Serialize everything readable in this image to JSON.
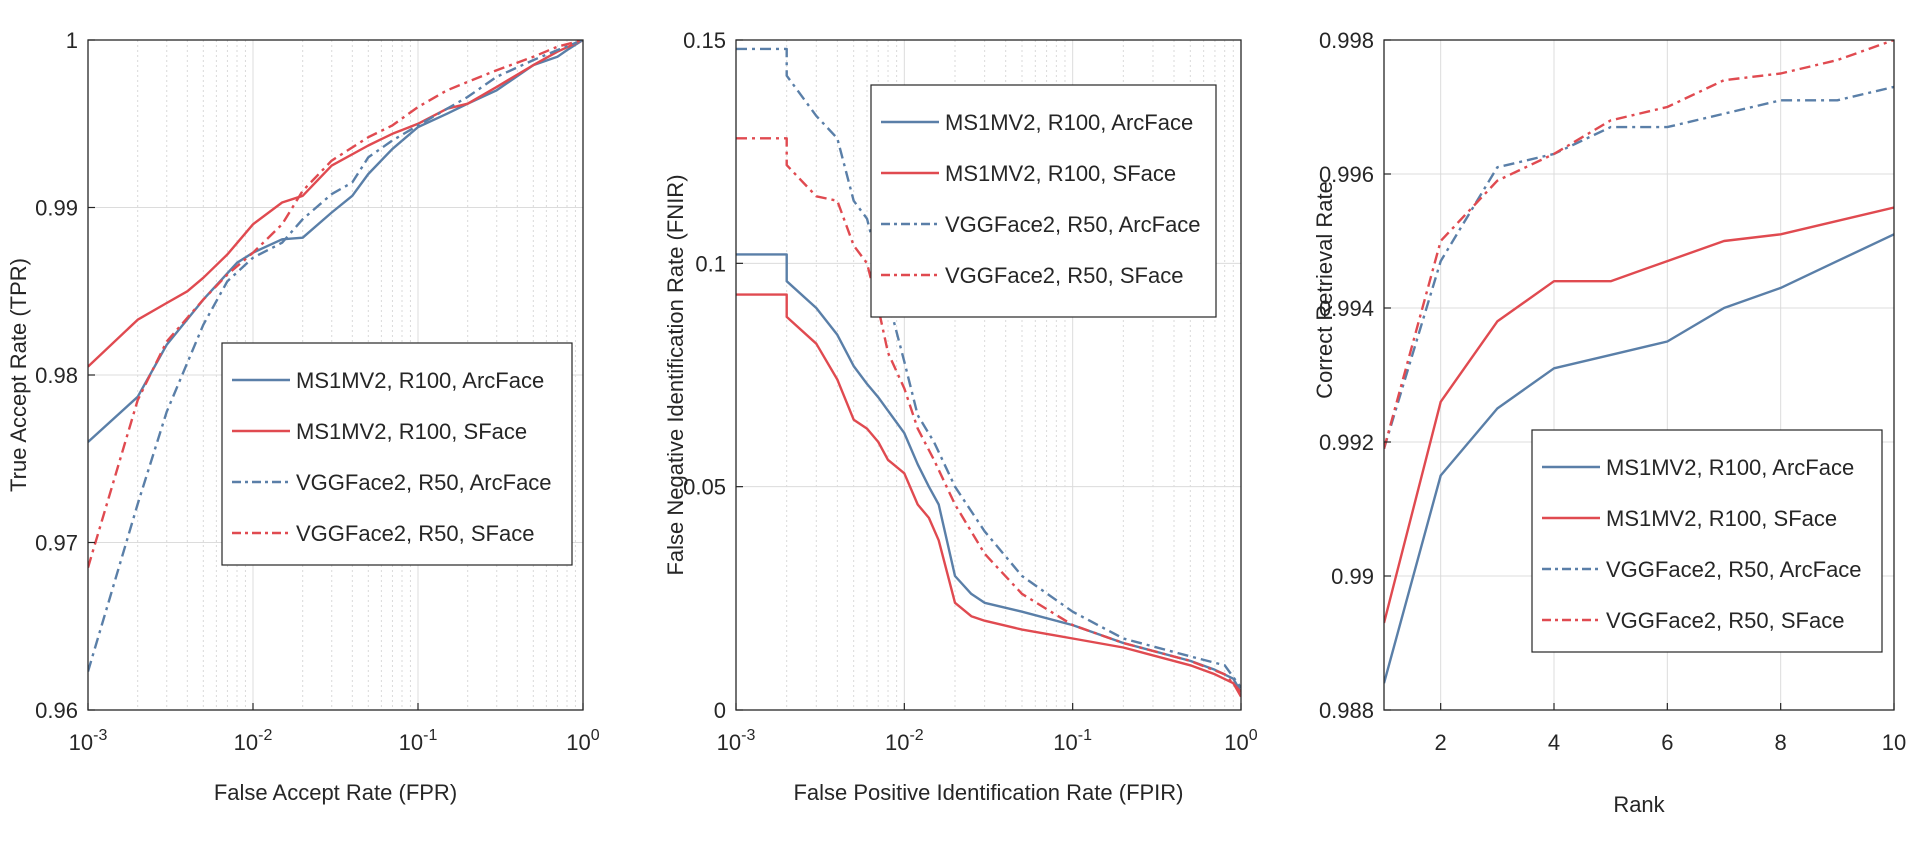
{
  "chart_data": [
    {
      "id": "roc",
      "type": "line",
      "xscale": "log",
      "xlabel": "False Accept Rate (FPR)",
      "ylabel": "True Accept Rate (TPR)",
      "xlim": [
        0.001,
        1
      ],
      "ylim": [
        0.96,
        1
      ],
      "xticks": [
        0.001,
        0.01,
        0.1,
        1
      ],
      "xtick_labels": [
        {
          "base": "10",
          "exp": "-3"
        },
        {
          "base": "10",
          "exp": "-2"
        },
        {
          "base": "10",
          "exp": "-1"
        },
        {
          "base": "10",
          "exp": "0"
        }
      ],
      "yticks": [
        0.96,
        0.97,
        0.98,
        0.99,
        1
      ],
      "ytick_labels": [
        "0.96",
        "0.97",
        "0.98",
        "0.99",
        "1"
      ],
      "grid": true,
      "legend_position": "center-right",
      "series": [
        {
          "name": "MS1MV2, R100, ArcFace",
          "color": "#5a7fa8",
          "dash": "solid",
          "x": [
            0.001,
            0.002,
            0.003,
            0.005,
            0.008,
            0.01,
            0.015,
            0.02,
            0.03,
            0.04,
            0.05,
            0.07,
            0.1,
            0.15,
            0.2,
            0.3,
            0.5,
            0.7,
            0.8,
            1.0
          ],
          "y": [
            0.976,
            0.9787,
            0.9818,
            0.9845,
            0.9867,
            0.9873,
            0.9881,
            0.9882,
            0.9897,
            0.9907,
            0.992,
            0.9935,
            0.9948,
            0.9956,
            0.9962,
            0.997,
            0.9985,
            0.999,
            0.9994,
            1.0
          ]
        },
        {
          "name": "MS1MV2, R100, SFace",
          "color": "#e04a50",
          "dash": "solid",
          "x": [
            0.001,
            0.002,
            0.003,
            0.004,
            0.005,
            0.007,
            0.01,
            0.015,
            0.02,
            0.03,
            0.05,
            0.07,
            0.1,
            0.15,
            0.2,
            0.3,
            0.5,
            0.7,
            1.0
          ],
          "y": [
            0.9805,
            0.9833,
            0.9843,
            0.985,
            0.9858,
            0.9872,
            0.989,
            0.9903,
            0.9907,
            0.9925,
            0.9937,
            0.9944,
            0.995,
            0.9959,
            0.9962,
            0.9972,
            0.9985,
            0.9993,
            1.0
          ]
        },
        {
          "name": "VGGFace2, R50, ArcFace",
          "color": "#5a7fa8",
          "dash": "dashdot",
          "x": [
            0.001,
            0.002,
            0.003,
            0.005,
            0.007,
            0.01,
            0.015,
            0.02,
            0.03,
            0.04,
            0.05,
            0.07,
            0.1,
            0.15,
            0.2,
            0.3,
            0.5,
            0.7,
            1.0
          ],
          "y": [
            0.9623,
            0.9723,
            0.9778,
            0.983,
            0.9856,
            0.987,
            0.9879,
            0.9893,
            0.9908,
            0.9915,
            0.993,
            0.994,
            0.9949,
            0.9959,
            0.9966,
            0.9978,
            0.9988,
            0.9994,
            1.0
          ]
        },
        {
          "name": "VGGFace2, R50, SFace",
          "color": "#e04a50",
          "dash": "dashdot",
          "x": [
            0.001,
            0.002,
            0.003,
            0.005,
            0.007,
            0.01,
            0.015,
            0.02,
            0.03,
            0.05,
            0.07,
            0.1,
            0.15,
            0.2,
            0.3,
            0.5,
            0.7,
            1.0
          ],
          "y": [
            0.9685,
            0.9785,
            0.982,
            0.9845,
            0.986,
            0.9873,
            0.989,
            0.991,
            0.9928,
            0.9942,
            0.9949,
            0.996,
            0.997,
            0.9975,
            0.9982,
            0.999,
            0.9996,
            1.0
          ]
        }
      ]
    },
    {
      "id": "det",
      "type": "line",
      "xscale": "log",
      "xlabel": "False Positive Identification Rate (FPIR)",
      "ylabel": "False Negative Identification Rate (FNIR)",
      "xlim": [
        0.001,
        1
      ],
      "ylim": [
        0,
        0.15
      ],
      "xticks": [
        0.001,
        0.01,
        0.1,
        1
      ],
      "xtick_labels": [
        {
          "base": "10",
          "exp": "-3"
        },
        {
          "base": "10",
          "exp": "-2"
        },
        {
          "base": "10",
          "exp": "-1"
        },
        {
          "base": "10",
          "exp": "0"
        }
      ],
      "yticks": [
        0,
        0.05,
        0.1,
        0.15
      ],
      "ytick_labels": [
        "0",
        "0.05",
        "0.1",
        "0.15"
      ],
      "grid": true,
      "legend_position": "top-right",
      "series": [
        {
          "name": "MS1MV2, R100, ArcFace",
          "color": "#5a7fa8",
          "dash": "solid",
          "x": [
            0.001,
            0.002,
            0.002,
            0.003,
            0.004,
            0.005,
            0.006,
            0.007,
            0.008,
            0.01,
            0.012,
            0.014,
            0.016,
            0.02,
            0.025,
            0.03,
            0.05,
            0.1,
            0.2,
            0.5,
            0.7,
            0.9,
            1.0
          ],
          "y": [
            0.102,
            0.102,
            0.096,
            0.09,
            0.084,
            0.077,
            0.073,
            0.07,
            0.067,
            0.062,
            0.055,
            0.05,
            0.046,
            0.03,
            0.026,
            0.024,
            0.022,
            0.019,
            0.015,
            0.011,
            0.009,
            0.007,
            0.004
          ]
        },
        {
          "name": "MS1MV2, R100, SFace",
          "color": "#e04a50",
          "dash": "solid",
          "x": [
            0.001,
            0.002,
            0.002,
            0.003,
            0.004,
            0.005,
            0.006,
            0.007,
            0.008,
            0.01,
            0.012,
            0.014,
            0.016,
            0.02,
            0.025,
            0.03,
            0.05,
            0.1,
            0.2,
            0.5,
            0.7,
            0.9,
            1.0
          ],
          "y": [
            0.093,
            0.093,
            0.088,
            0.082,
            0.074,
            0.065,
            0.063,
            0.06,
            0.056,
            0.053,
            0.046,
            0.043,
            0.038,
            0.024,
            0.021,
            0.02,
            0.018,
            0.016,
            0.014,
            0.01,
            0.008,
            0.006,
            0.003
          ]
        },
        {
          "name": "VGGFace2, R50, ArcFace",
          "color": "#5a7fa8",
          "dash": "dashdot",
          "x": [
            0.001,
            0.002,
            0.002,
            0.003,
            0.004,
            0.005,
            0.006,
            0.007,
            0.008,
            0.01,
            0.012,
            0.015,
            0.02,
            0.03,
            0.05,
            0.1,
            0.2,
            0.5,
            0.8,
            1.0
          ],
          "y": [
            0.148,
            0.148,
            0.142,
            0.133,
            0.128,
            0.114,
            0.11,
            0.1,
            0.092,
            0.078,
            0.066,
            0.06,
            0.05,
            0.04,
            0.03,
            0.022,
            0.016,
            0.012,
            0.01,
            0.005
          ]
        },
        {
          "name": "VGGFace2, R50, SFace",
          "color": "#e04a50",
          "dash": "dashdot",
          "x": [
            0.001,
            0.002,
            0.002,
            0.003,
            0.004,
            0.005,
            0.006,
            0.007,
            0.008,
            0.01,
            0.012,
            0.015,
            0.02,
            0.03,
            0.05,
            0.1,
            0.2,
            0.5,
            0.8,
            1.0
          ],
          "y": [
            0.128,
            0.128,
            0.122,
            0.115,
            0.114,
            0.104,
            0.1,
            0.09,
            0.08,
            0.072,
            0.063,
            0.056,
            0.046,
            0.035,
            0.026,
            0.019,
            0.015,
            0.011,
            0.008,
            0.004
          ]
        }
      ]
    },
    {
      "id": "cmc",
      "type": "line",
      "xscale": "linear",
      "xlabel": "Rank",
      "ylabel": "Correct Retrieval Rate",
      "xlim": [
        1,
        10
      ],
      "ylim": [
        0.988,
        0.998
      ],
      "xticks": [
        2,
        4,
        6,
        8,
        10
      ],
      "xtick_labels": [
        "2",
        "4",
        "6",
        "8",
        "10"
      ],
      "yticks": [
        0.988,
        0.99,
        0.992,
        0.994,
        0.996,
        0.998
      ],
      "ytick_labels": [
        "0.988",
        "0.99",
        "0.992",
        "0.994",
        "0.996",
        "0.998"
      ],
      "grid": true,
      "legend_position": "bottom-right",
      "series": [
        {
          "name": "MS1MV2, R100, ArcFace",
          "color": "#5a7fa8",
          "dash": "solid",
          "x": [
            1,
            2,
            3,
            4,
            5,
            6,
            7,
            8,
            9,
            10
          ],
          "y": [
            0.9884,
            0.9915,
            0.9925,
            0.9931,
            0.9933,
            0.9935,
            0.994,
            0.9943,
            0.9947,
            0.9951
          ]
        },
        {
          "name": "MS1MV2, R100, SFace",
          "color": "#e04a50",
          "dash": "solid",
          "x": [
            1,
            2,
            3,
            4,
            5,
            6,
            7,
            8,
            9,
            10
          ],
          "y": [
            0.9893,
            0.9926,
            0.9938,
            0.9944,
            0.9944,
            0.9947,
            0.995,
            0.9951,
            0.9953,
            0.9955
          ]
        },
        {
          "name": "VGGFace2, R50, ArcFace",
          "color": "#5a7fa8",
          "dash": "dashdot",
          "x": [
            1,
            2,
            3,
            4,
            5,
            6,
            7,
            8,
            9,
            10
          ],
          "y": [
            0.9919,
            0.9947,
            0.9961,
            0.9963,
            0.9967,
            0.9967,
            0.9969,
            0.9971,
            0.9971,
            0.9973
          ]
        },
        {
          "name": "VGGFace2, R50, SFace",
          "color": "#e04a50",
          "dash": "dashdot",
          "x": [
            1,
            2,
            3,
            4,
            5,
            6,
            7,
            8,
            9,
            10
          ],
          "y": [
            0.9919,
            0.995,
            0.9959,
            0.9963,
            0.9968,
            0.997,
            0.9974,
            0.9975,
            0.9977,
            0.998
          ]
        }
      ]
    }
  ]
}
